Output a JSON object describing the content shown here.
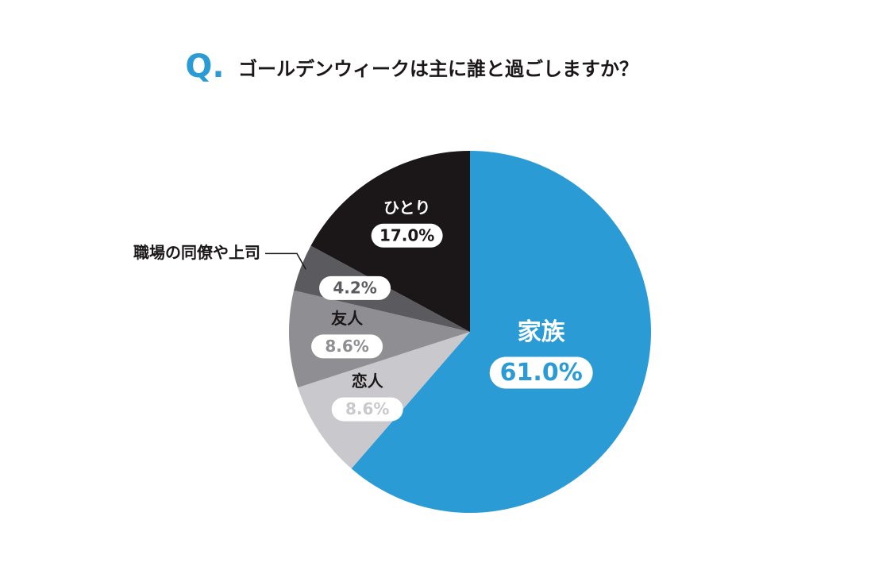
{
  "chart_data": {
    "type": "pie",
    "title_prefix": "Q.",
    "title": "ゴールデンウィークは主に誰と過ごしますか？",
    "categories": [
      "家族",
      "恋人",
      "友人",
      "職場の同僚や上司",
      "ひとり"
    ],
    "values": [
      61.0,
      8.6,
      8.6,
      4.2,
      17.0
    ],
    "value_labels": [
      "61.0%",
      "8.6%",
      "8.6%",
      "4.2%",
      "17.0%"
    ],
    "colors": [
      "#2a9bd5",
      "#c9c9cd",
      "#8f8f93",
      "#5b5b5f",
      "#1b1719"
    ]
  }
}
